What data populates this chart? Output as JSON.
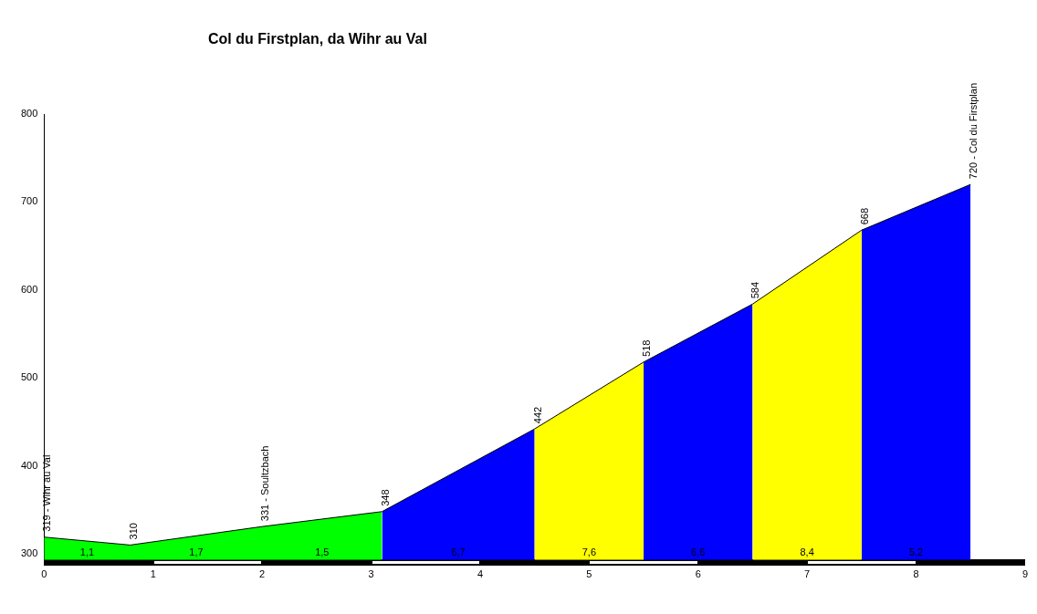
{
  "chart_data": {
    "type": "area",
    "title": "Col du Firstplan, da Wihr au Val",
    "series": [
      {
        "color": "#00ff00",
        "x": [
          0,
          0.79,
          2.0,
          3.1
        ],
        "values": [
          319,
          310,
          331,
          348
        ],
        "value_labels": [
          "319 - Wihr au Val",
          "310",
          "331 - Soultzbach",
          "348"
        ]
      },
      {
        "color": "#0000ff",
        "x": [
          3.1,
          4.5
        ],
        "values": [
          348,
          442
        ],
        "value_labels": [
          null,
          "442"
        ]
      },
      {
        "color": "#ffff00",
        "x": [
          4.5,
          5.5
        ],
        "values": [
          442,
          518
        ],
        "value_labels": [
          null,
          "518"
        ]
      },
      {
        "color": "#0000ff",
        "x": [
          5.5,
          6.5
        ],
        "values": [
          518,
          584
        ],
        "value_labels": [
          null,
          "584"
        ]
      },
      {
        "color": "#ffff00",
        "x": [
          6.5,
          7.5
        ],
        "values": [
          584,
          668
        ],
        "value_labels": [
          null,
          "668"
        ]
      },
      {
        "color": "#0000ff",
        "x": [
          7.5,
          8.5
        ],
        "values": [
          668,
          720
        ],
        "value_labels": [
          null,
          "720 - Col du Firstplan"
        ]
      }
    ],
    "annotations": [
      "1,1",
      "1,7",
      "1,5",
      "6,7",
      "7,6",
      "6,6",
      "8,4",
      "5,2"
    ],
    "xlim": [
      0,
      9
    ],
    "xticks": [
      0,
      1,
      2,
      3,
      4,
      5,
      6,
      7,
      8,
      9
    ],
    "ylim": [
      293,
      800
    ],
    "yticks": [
      300,
      400,
      500,
      600,
      700,
      800
    ],
    "grid": false,
    "legend": false
  }
}
